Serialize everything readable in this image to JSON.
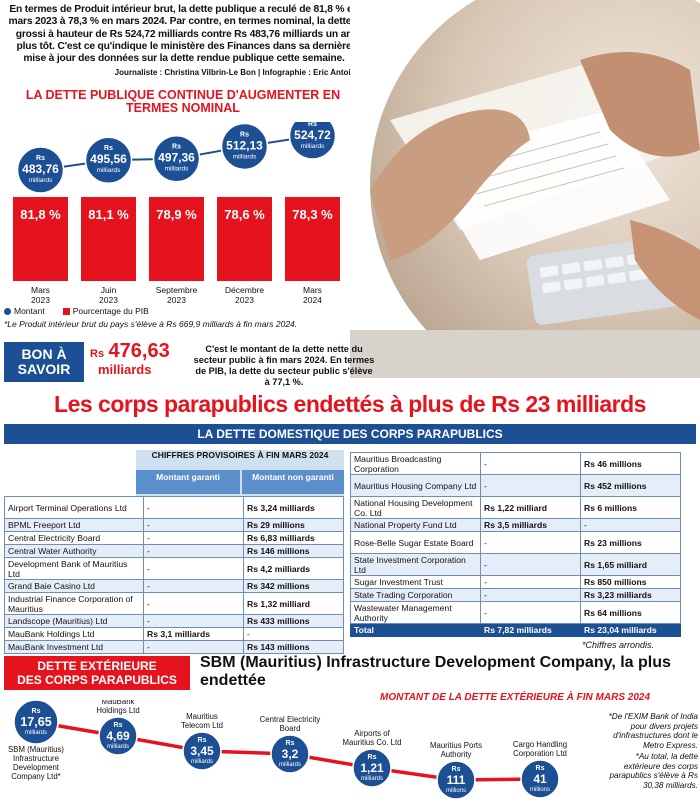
{
  "intro": {
    "text": "En termes de Produit intérieur brut, la dette publique a reculé de 81,8 % en mars 2023 à 78,3 % en mars 2024. Par contre, en termes nominal, la dette a grossi à hauteur de Rs 524,72 milliards contre Rs 483,76 milliards un an plus tôt. C'est ce qu'indique le ministère des Finances dans sa dernière mise à jour des données sur la dette rendue publique cette semaine.",
    "credit": "Journaliste : Christina Vilbrin-Le Bon | Infographie : Eric Antoine"
  },
  "colors": {
    "red": "#e5131d",
    "blue": "#1d4f94",
    "light_blue": "#cfe0f1"
  },
  "chart_data": [
    {
      "type": "bar",
      "title": "LA DETTE PUBLIQUE CONTINUE D'AUGMENTER EN TERMES NOMINAL",
      "categories": [
        "Mars 2023",
        "Juin 2023",
        "Septembre 2023",
        "Décembre 2023",
        "Mars 2024"
      ],
      "category_lines": [
        [
          "Mars",
          "2023"
        ],
        [
          "Juin",
          "2023"
        ],
        [
          "Septembre",
          "2023"
        ],
        [
          "Décembre",
          "2023"
        ],
        [
          "Mars",
          "2024"
        ]
      ],
      "series": [
        {
          "name": "Montant",
          "values": [
            483.76,
            495.56,
            497.36,
            512.13,
            524.72
          ],
          "labels": [
            "483,76",
            "495,56",
            "497,36",
            "512,13",
            "524,72"
          ],
          "prefix": "Rs",
          "unit": "milliards"
        },
        {
          "name": "Pourcentage du PIB",
          "values": [
            81.8,
            81.1,
            78.9,
            78.6,
            78.3
          ],
          "labels": [
            "81,8 %",
            "81,1 %",
            "78,9 %",
            "78,6 %",
            "78,3 %"
          ]
        }
      ]
    },
    {
      "type": "line",
      "title": "MONTANT DE LA DETTE EXTÉRIEURE À FIN MARS 2024",
      "categories": [
        "SBM (Mauritius) Infrastructure Development Company Ltd*",
        "MauBank Holdings Ltd",
        "Mauritius Telecom Ltd",
        "Central Electricity Board",
        "Airports of Mauritius Co. Ltd",
        "Mauritius Ports Authority",
        "Cargo Handling Corporation Ltd"
      ],
      "category_lines": [
        [
          "SBM (Mauritius)",
          "Infrastructure",
          "Development",
          "Company Ltd*"
        ],
        [
          "MauBank",
          "Holdings Ltd"
        ],
        [
          "Mauritius",
          "Telecom Ltd"
        ],
        [
          "Central Electricity",
          "Board"
        ],
        [
          "Airports of",
          "Mauritius Co. Ltd"
        ],
        [
          "Mauritius Ports",
          "Authority"
        ],
        [
          "Cargo Handling",
          "Corporation Ltd"
        ]
      ],
      "values_millions": [
        17650,
        4690,
        3450,
        3200,
        1210,
        111,
        41
      ],
      "value_labels": [
        "17,65",
        "4,69",
        "3,45",
        "3,2",
        "1,21",
        "111",
        "41"
      ],
      "unit_labels": [
        "milliards",
        "milliards",
        "milliards",
        "milliards",
        "milliards",
        "millions",
        "millions"
      ],
      "prefix": "Rs"
    }
  ],
  "legend": {
    "montant": "Montant",
    "pib": "Pourcentage du PIB"
  },
  "footnote1": "*Le Produit intérieur brut du pays s'élève à Rs 669,9 milliards à fin mars 2024.",
  "bon_a_savoir": {
    "label_line1": "BON À",
    "label_line2": "SAVOIR",
    "amount_prefix": "Rs",
    "amount": "476,63",
    "amount_unit": "milliards",
    "text": "C'est le montant de la dette nette du secteur public à fin mars 2024. En termes de PIB, la dette du secteur public s'élève à 77,1 %."
  },
  "main_title": "Les corps parapublics endettés à plus de Rs 23 milliards",
  "domestic": {
    "title": "LA DETTE DOMESTIQUE DES CORPS PARAPUBLICS",
    "header_top": "CHIFFRES PROVISOIRES À FIN MARS 2024",
    "col_garanti": "Montant garanti",
    "col_non_garanti": "Montant non garanti",
    "left_rows": [
      [
        "Airport Terminal Operations Ltd",
        "-",
        "Rs 3,24 milliards"
      ],
      [
        "BPML Freeport Ltd",
        "-",
        "Rs 29 millions"
      ],
      [
        "Central Electricity Board",
        "-",
        "Rs 6,83 milliards"
      ],
      [
        "Central Water Authority",
        "-",
        "Rs 146 millions"
      ],
      [
        "Development Bank of Mauritius Ltd",
        "-",
        "Rs 4,2 milliards"
      ],
      [
        "Grand Baie Casino Ltd",
        "-",
        "Rs 342 millions"
      ],
      [
        "Industrial Finance Corporation of Mauritius",
        "-",
        "Rs 1,32 milliard"
      ],
      [
        "Landscope (Mauritius) Ltd",
        "-",
        "Rs 433 millions"
      ],
      [
        "MauBank Holdings Ltd",
        "Rs 3,1 milliards",
        "-"
      ],
      [
        "MauBank Investment Ltd",
        "-",
        "Rs 143 millions"
      ]
    ],
    "right_rows": [
      [
        "Mauritius Broadcasting Corporation",
        "-",
        "Rs 46 millions"
      ],
      [
        "Mauritius Housing Company Ltd",
        "-",
        "Rs 452 millions"
      ],
      [
        "National Housing Development Co. Ltd",
        "Rs 1,22 milliard",
        "Rs 6 millions"
      ],
      [
        "National Property Fund Ltd",
        "Rs 3,5 milliards",
        "-"
      ],
      [
        "Rose-Belle Sugar Estate Board",
        "-",
        "Rs 23 millions"
      ],
      [
        "State Investment Corporation Ltd",
        "-",
        "Rs 1,65 milliard"
      ],
      [
        "Sugar Investment Trust",
        "-",
        "Rs 850 millions"
      ],
      [
        "State Trading Corporation",
        "-",
        "Rs 3,23 milliards"
      ],
      [
        "Wastewater Management Authority",
        "-",
        "Rs 64 millions"
      ]
    ],
    "total": [
      "Total",
      "Rs 7,82 milliards",
      "Rs 23,04 milliards"
    ],
    "note": "*Chiffres arrondis."
  },
  "external": {
    "box_line1": "DETTE EXTÉRIEURE",
    "box_line2": "DES CORPS PARAPUBLICS",
    "headline": "SBM (Mauritius) Infrastructure Development Company, la plus endettée",
    "note1": "*De l'EXIM Bank of India pour divers projets d'infrastructures dont le Metro Express.",
    "note2": "*Au total, la dette extérieure des corps parapublics s'élève à Rs 30,38 milliards."
  }
}
